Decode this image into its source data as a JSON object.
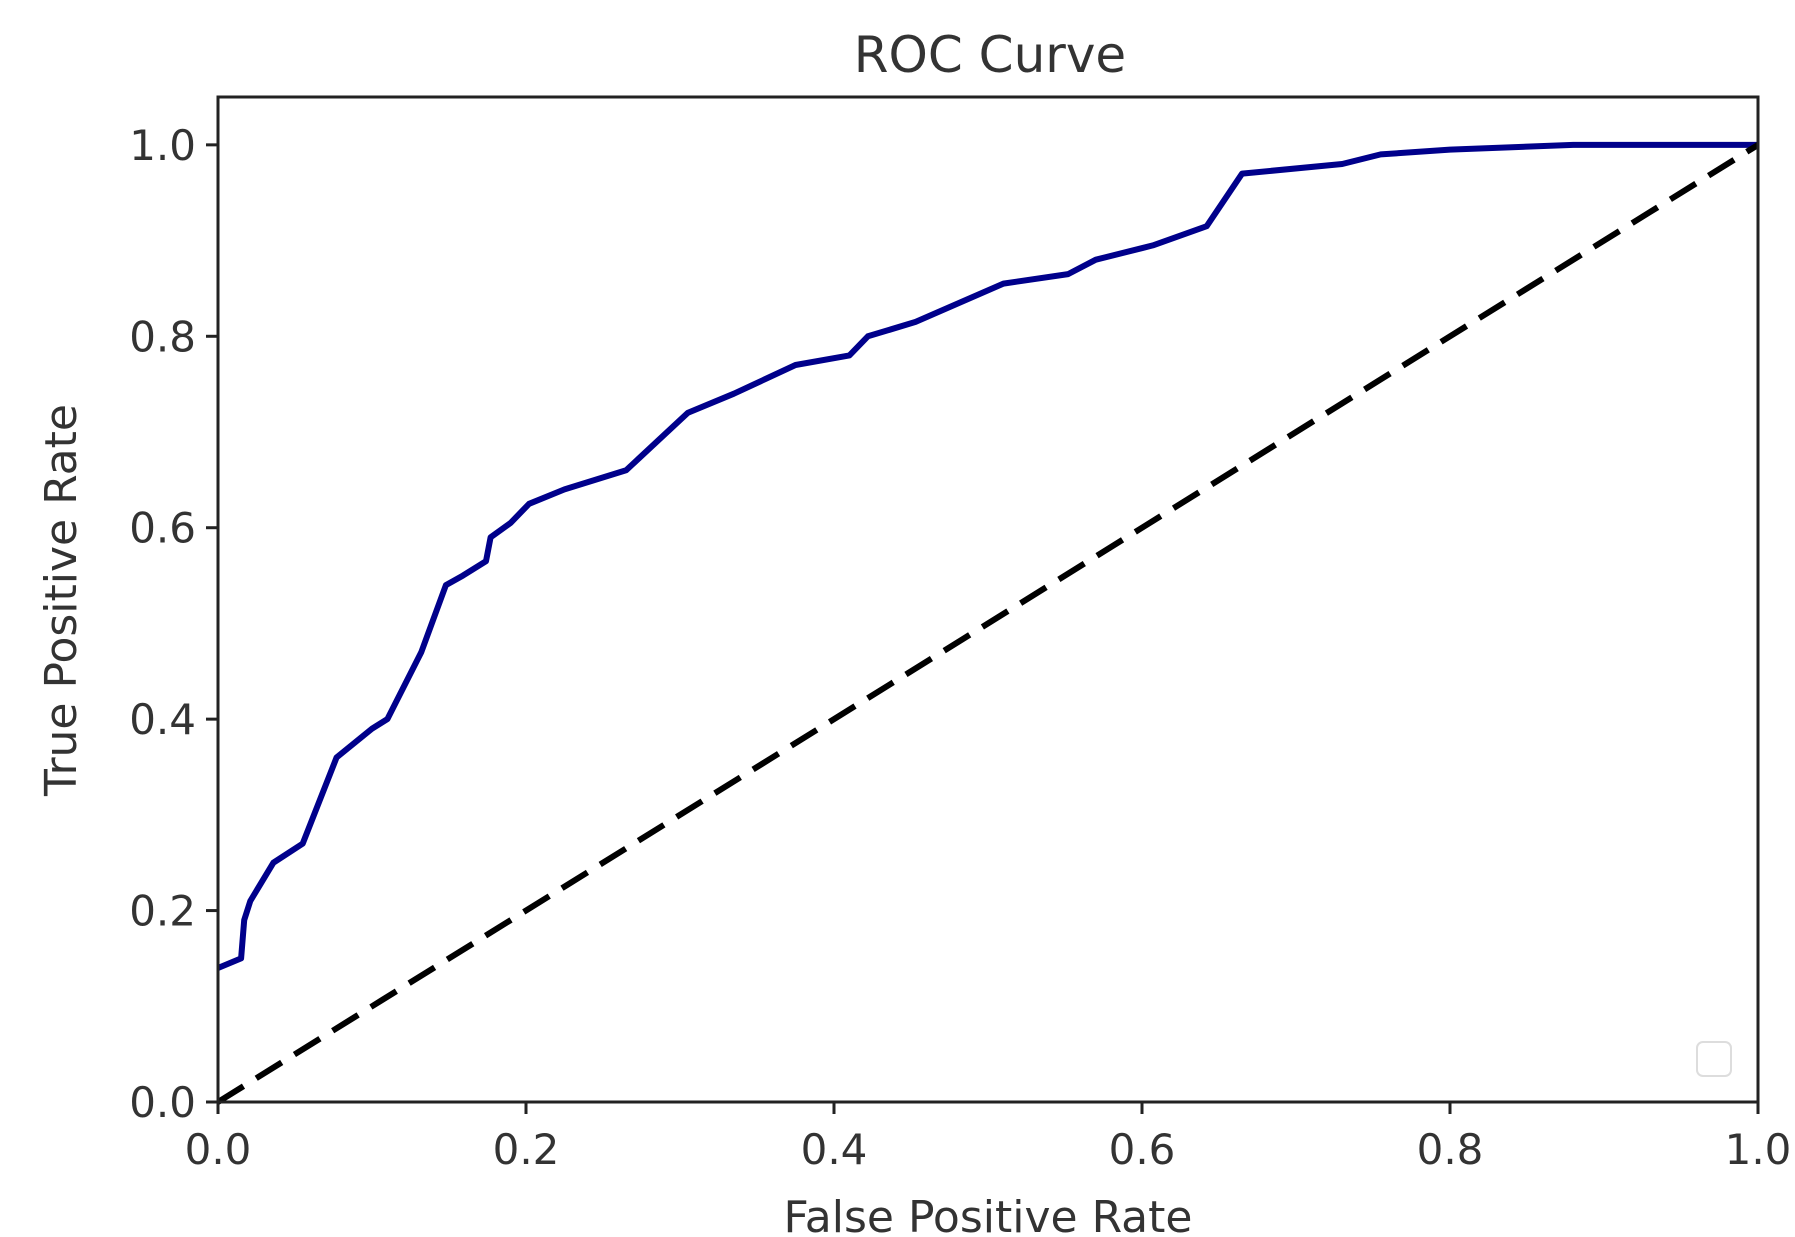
{
  "chart_data": {
    "type": "line",
    "title": "ROC Curve",
    "xlabel": "False Positive Rate",
    "ylabel": "True Positive Rate",
    "xlim": [
      0.0,
      1.0
    ],
    "ylim": [
      0.0,
      1.05
    ],
    "x_ticks": [
      0.0,
      0.2,
      0.4,
      0.6,
      0.8,
      1.0
    ],
    "x_tick_labels": [
      "0.0",
      "0.2",
      "0.4",
      "0.6",
      "0.8",
      "1.0"
    ],
    "y_ticks": [
      0.0,
      0.2,
      0.4,
      0.6,
      0.8,
      1.0
    ],
    "y_tick_labels": [
      "0.0",
      "0.2",
      "0.4",
      "0.6",
      "0.8",
      "1.0"
    ],
    "grid": false,
    "legend": {
      "placement": "lower right",
      "entries": []
    },
    "series": [
      {
        "color": "#00008b",
        "style": "solid",
        "x": [
          0.0,
          0.015,
          0.017,
          0.021,
          0.036,
          0.055,
          0.077,
          0.1,
          0.11,
          0.132,
          0.148,
          0.159,
          0.174,
          0.177,
          0.19,
          0.202,
          0.225,
          0.265,
          0.305,
          0.335,
          0.375,
          0.41,
          0.422,
          0.453,
          0.51,
          0.552,
          0.57,
          0.607,
          0.642,
          0.665,
          0.73,
          0.755,
          0.8,
          0.88,
          1.0
        ],
        "y": [
          0.14,
          0.15,
          0.19,
          0.21,
          0.25,
          0.27,
          0.36,
          0.39,
          0.4,
          0.47,
          0.54,
          0.55,
          0.565,
          0.59,
          0.605,
          0.625,
          0.64,
          0.66,
          0.72,
          0.74,
          0.77,
          0.78,
          0.8,
          0.815,
          0.855,
          0.865,
          0.88,
          0.895,
          0.915,
          0.97,
          0.98,
          0.99,
          0.995,
          1.0,
          1.0
        ]
      },
      {
        "color": "#000000",
        "style": "dashed",
        "x": [
          0.0,
          1.0
        ],
        "y": [
          0.0,
          1.0
        ]
      }
    ]
  }
}
